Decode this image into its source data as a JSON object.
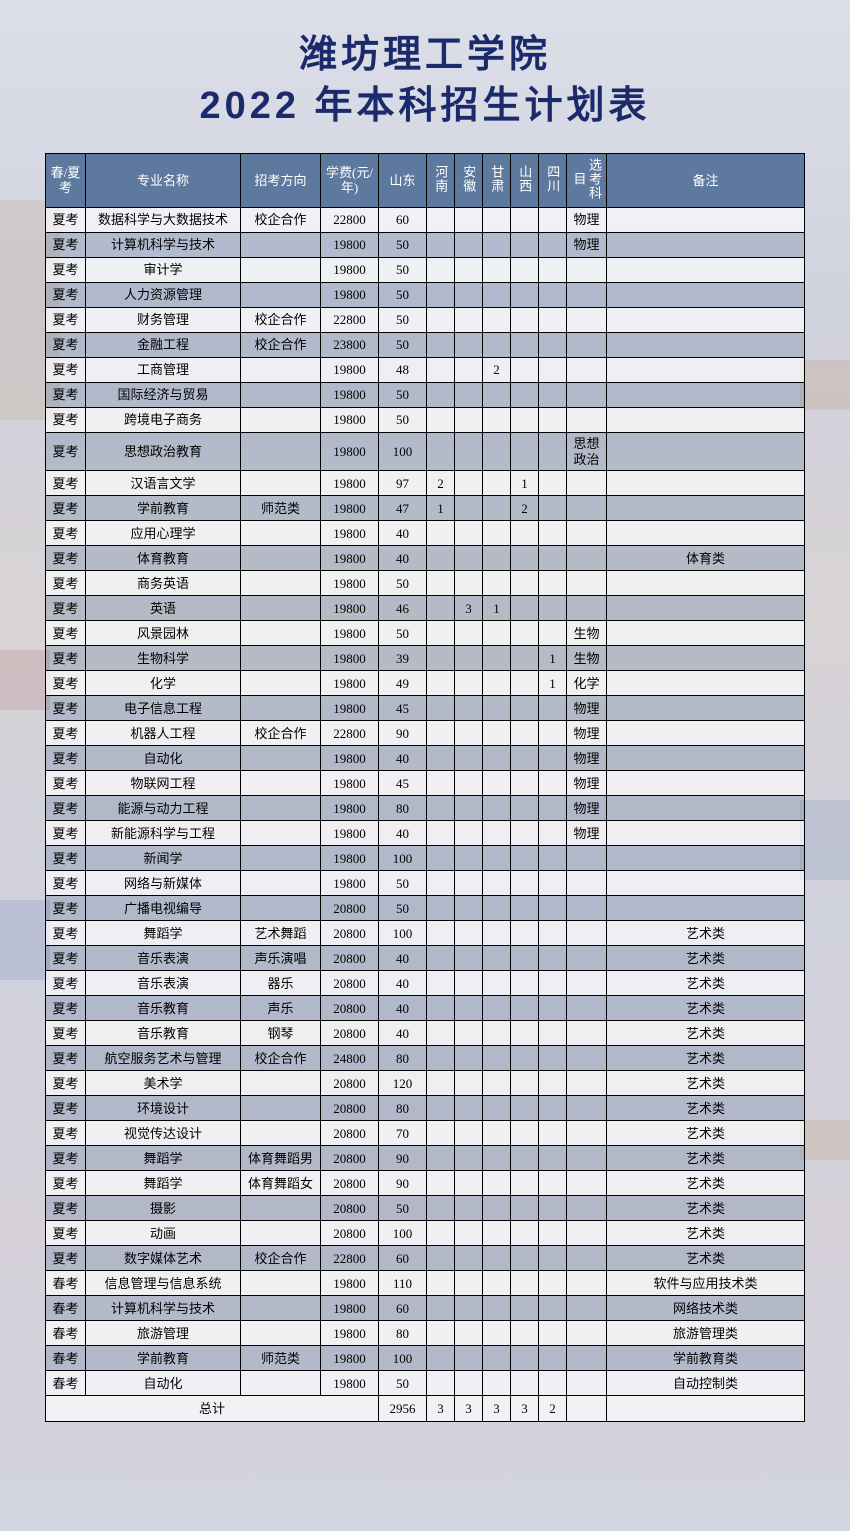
{
  "title_line1": "潍坊理工学院",
  "title_line2": "2022 年本科招生计划表",
  "headers": {
    "exam": "春/夏考",
    "major": "专业名称",
    "direction": "招考方向",
    "fee": "学费(元/年)",
    "shandong": "山东",
    "henan": "河南",
    "anhui": "安徽",
    "gansu": "甘肃",
    "shanxi": "山西",
    "sichuan": "四川",
    "subject": "选考科目",
    "note": "备注"
  },
  "rows": [
    {
      "exam": "夏考",
      "major": "数据科学与大数据技术",
      "direction": "校企合作",
      "fee": "22800",
      "sd": "60",
      "hn": "",
      "ah": "",
      "gs": "",
      "sx": "",
      "sc": "",
      "subj": "物理",
      "note": ""
    },
    {
      "exam": "夏考",
      "major": "计算机科学与技术",
      "direction": "",
      "fee": "19800",
      "sd": "50",
      "hn": "",
      "ah": "",
      "gs": "",
      "sx": "",
      "sc": "",
      "subj": "物理",
      "note": ""
    },
    {
      "exam": "夏考",
      "major": "审计学",
      "direction": "",
      "fee": "19800",
      "sd": "50",
      "hn": "",
      "ah": "",
      "gs": "",
      "sx": "",
      "sc": "",
      "subj": "",
      "note": ""
    },
    {
      "exam": "夏考",
      "major": "人力资源管理",
      "direction": "",
      "fee": "19800",
      "sd": "50",
      "hn": "",
      "ah": "",
      "gs": "",
      "sx": "",
      "sc": "",
      "subj": "",
      "note": ""
    },
    {
      "exam": "夏考",
      "major": "财务管理",
      "direction": "校企合作",
      "fee": "22800",
      "sd": "50",
      "hn": "",
      "ah": "",
      "gs": "",
      "sx": "",
      "sc": "",
      "subj": "",
      "note": ""
    },
    {
      "exam": "夏考",
      "major": "金融工程",
      "direction": "校企合作",
      "fee": "23800",
      "sd": "50",
      "hn": "",
      "ah": "",
      "gs": "",
      "sx": "",
      "sc": "",
      "subj": "",
      "note": ""
    },
    {
      "exam": "夏考",
      "major": "工商管理",
      "direction": "",
      "fee": "19800",
      "sd": "48",
      "hn": "",
      "ah": "",
      "gs": "2",
      "sx": "",
      "sc": "",
      "subj": "",
      "note": ""
    },
    {
      "exam": "夏考",
      "major": "国际经济与贸易",
      "direction": "",
      "fee": "19800",
      "sd": "50",
      "hn": "",
      "ah": "",
      "gs": "",
      "sx": "",
      "sc": "",
      "subj": "",
      "note": ""
    },
    {
      "exam": "夏考",
      "major": "跨境电子商务",
      "direction": "",
      "fee": "19800",
      "sd": "50",
      "hn": "",
      "ah": "",
      "gs": "",
      "sx": "",
      "sc": "",
      "subj": "",
      "note": ""
    },
    {
      "exam": "夏考",
      "major": "思想政治教育",
      "direction": "",
      "fee": "19800",
      "sd": "100",
      "hn": "",
      "ah": "",
      "gs": "",
      "sx": "",
      "sc": "",
      "subj": "思想政治",
      "note": ""
    },
    {
      "exam": "夏考",
      "major": "汉语言文学",
      "direction": "",
      "fee": "19800",
      "sd": "97",
      "hn": "2",
      "ah": "",
      "gs": "",
      "sx": "1",
      "sc": "",
      "subj": "",
      "note": ""
    },
    {
      "exam": "夏考",
      "major": "学前教育",
      "direction": "师范类",
      "fee": "19800",
      "sd": "47",
      "hn": "1",
      "ah": "",
      "gs": "",
      "sx": "2",
      "sc": "",
      "subj": "",
      "note": ""
    },
    {
      "exam": "夏考",
      "major": "应用心理学",
      "direction": "",
      "fee": "19800",
      "sd": "40",
      "hn": "",
      "ah": "",
      "gs": "",
      "sx": "",
      "sc": "",
      "subj": "",
      "note": ""
    },
    {
      "exam": "夏考",
      "major": "体育教育",
      "direction": "",
      "fee": "19800",
      "sd": "40",
      "hn": "",
      "ah": "",
      "gs": "",
      "sx": "",
      "sc": "",
      "subj": "",
      "note": "体育类"
    },
    {
      "exam": "夏考",
      "major": "商务英语",
      "direction": "",
      "fee": "19800",
      "sd": "50",
      "hn": "",
      "ah": "",
      "gs": "",
      "sx": "",
      "sc": "",
      "subj": "",
      "note": ""
    },
    {
      "exam": "夏考",
      "major": "英语",
      "direction": "",
      "fee": "19800",
      "sd": "46",
      "hn": "",
      "ah": "3",
      "gs": "1",
      "sx": "",
      "sc": "",
      "subj": "",
      "note": ""
    },
    {
      "exam": "夏考",
      "major": "风景园林",
      "direction": "",
      "fee": "19800",
      "sd": "50",
      "hn": "",
      "ah": "",
      "gs": "",
      "sx": "",
      "sc": "",
      "subj": "生物",
      "note": ""
    },
    {
      "exam": "夏考",
      "major": "生物科学",
      "direction": "",
      "fee": "19800",
      "sd": "39",
      "hn": "",
      "ah": "",
      "gs": "",
      "sx": "",
      "sc": "1",
      "subj": "生物",
      "note": ""
    },
    {
      "exam": "夏考",
      "major": "化学",
      "direction": "",
      "fee": "19800",
      "sd": "49",
      "hn": "",
      "ah": "",
      "gs": "",
      "sx": "",
      "sc": "1",
      "subj": "化学",
      "note": ""
    },
    {
      "exam": "夏考",
      "major": "电子信息工程",
      "direction": "",
      "fee": "19800",
      "sd": "45",
      "hn": "",
      "ah": "",
      "gs": "",
      "sx": "",
      "sc": "",
      "subj": "物理",
      "note": ""
    },
    {
      "exam": "夏考",
      "major": "机器人工程",
      "direction": "校企合作",
      "fee": "22800",
      "sd": "90",
      "hn": "",
      "ah": "",
      "gs": "",
      "sx": "",
      "sc": "",
      "subj": "物理",
      "note": ""
    },
    {
      "exam": "夏考",
      "major": "自动化",
      "direction": "",
      "fee": "19800",
      "sd": "40",
      "hn": "",
      "ah": "",
      "gs": "",
      "sx": "",
      "sc": "",
      "subj": "物理",
      "note": ""
    },
    {
      "exam": "夏考",
      "major": "物联网工程",
      "direction": "",
      "fee": "19800",
      "sd": "45",
      "hn": "",
      "ah": "",
      "gs": "",
      "sx": "",
      "sc": "",
      "subj": "物理",
      "note": ""
    },
    {
      "exam": "夏考",
      "major": "能源与动力工程",
      "direction": "",
      "fee": "19800",
      "sd": "80",
      "hn": "",
      "ah": "",
      "gs": "",
      "sx": "",
      "sc": "",
      "subj": "物理",
      "note": ""
    },
    {
      "exam": "夏考",
      "major": "新能源科学与工程",
      "direction": "",
      "fee": "19800",
      "sd": "40",
      "hn": "",
      "ah": "",
      "gs": "",
      "sx": "",
      "sc": "",
      "subj": "物理",
      "note": ""
    },
    {
      "exam": "夏考",
      "major": "新闻学",
      "direction": "",
      "fee": "19800",
      "sd": "100",
      "hn": "",
      "ah": "",
      "gs": "",
      "sx": "",
      "sc": "",
      "subj": "",
      "note": ""
    },
    {
      "exam": "夏考",
      "major": "网络与新媒体",
      "direction": "",
      "fee": "19800",
      "sd": "50",
      "hn": "",
      "ah": "",
      "gs": "",
      "sx": "",
      "sc": "",
      "subj": "",
      "note": ""
    },
    {
      "exam": "夏考",
      "major": "广播电视编导",
      "direction": "",
      "fee": "20800",
      "sd": "50",
      "hn": "",
      "ah": "",
      "gs": "",
      "sx": "",
      "sc": "",
      "subj": "",
      "note": ""
    },
    {
      "exam": "夏考",
      "major": "舞蹈学",
      "direction": "艺术舞蹈",
      "fee": "20800",
      "sd": "100",
      "hn": "",
      "ah": "",
      "gs": "",
      "sx": "",
      "sc": "",
      "subj": "",
      "note": "艺术类"
    },
    {
      "exam": "夏考",
      "major": "音乐表演",
      "direction": "声乐演唱",
      "fee": "20800",
      "sd": "40",
      "hn": "",
      "ah": "",
      "gs": "",
      "sx": "",
      "sc": "",
      "subj": "",
      "note": "艺术类"
    },
    {
      "exam": "夏考",
      "major": "音乐表演",
      "direction": "器乐",
      "fee": "20800",
      "sd": "40",
      "hn": "",
      "ah": "",
      "gs": "",
      "sx": "",
      "sc": "",
      "subj": "",
      "note": "艺术类"
    },
    {
      "exam": "夏考",
      "major": "音乐教育",
      "direction": "声乐",
      "fee": "20800",
      "sd": "40",
      "hn": "",
      "ah": "",
      "gs": "",
      "sx": "",
      "sc": "",
      "subj": "",
      "note": "艺术类"
    },
    {
      "exam": "夏考",
      "major": "音乐教育",
      "direction": "钢琴",
      "fee": "20800",
      "sd": "40",
      "hn": "",
      "ah": "",
      "gs": "",
      "sx": "",
      "sc": "",
      "subj": "",
      "note": "艺术类"
    },
    {
      "exam": "夏考",
      "major": "航空服务艺术与管理",
      "direction": "校企合作",
      "fee": "24800",
      "sd": "80",
      "hn": "",
      "ah": "",
      "gs": "",
      "sx": "",
      "sc": "",
      "subj": "",
      "note": "艺术类"
    },
    {
      "exam": "夏考",
      "major": "美术学",
      "direction": "",
      "fee": "20800",
      "sd": "120",
      "hn": "",
      "ah": "",
      "gs": "",
      "sx": "",
      "sc": "",
      "subj": "",
      "note": "艺术类"
    },
    {
      "exam": "夏考",
      "major": "环境设计",
      "direction": "",
      "fee": "20800",
      "sd": "80",
      "hn": "",
      "ah": "",
      "gs": "",
      "sx": "",
      "sc": "",
      "subj": "",
      "note": "艺术类"
    },
    {
      "exam": "夏考",
      "major": "视觉传达设计",
      "direction": "",
      "fee": "20800",
      "sd": "70",
      "hn": "",
      "ah": "",
      "gs": "",
      "sx": "",
      "sc": "",
      "subj": "",
      "note": "艺术类"
    },
    {
      "exam": "夏考",
      "major": "舞蹈学",
      "direction": "体育舞蹈男",
      "fee": "20800",
      "sd": "90",
      "hn": "",
      "ah": "",
      "gs": "",
      "sx": "",
      "sc": "",
      "subj": "",
      "note": "艺术类"
    },
    {
      "exam": "夏考",
      "major": "舞蹈学",
      "direction": "体育舞蹈女",
      "fee": "20800",
      "sd": "90",
      "hn": "",
      "ah": "",
      "gs": "",
      "sx": "",
      "sc": "",
      "subj": "",
      "note": "艺术类"
    },
    {
      "exam": "夏考",
      "major": "摄影",
      "direction": "",
      "fee": "20800",
      "sd": "50",
      "hn": "",
      "ah": "",
      "gs": "",
      "sx": "",
      "sc": "",
      "subj": "",
      "note": "艺术类"
    },
    {
      "exam": "夏考",
      "major": "动画",
      "direction": "",
      "fee": "20800",
      "sd": "100",
      "hn": "",
      "ah": "",
      "gs": "",
      "sx": "",
      "sc": "",
      "subj": "",
      "note": "艺术类"
    },
    {
      "exam": "夏考",
      "major": "数字媒体艺术",
      "direction": "校企合作",
      "fee": "22800",
      "sd": "60",
      "hn": "",
      "ah": "",
      "gs": "",
      "sx": "",
      "sc": "",
      "subj": "",
      "note": "艺术类"
    },
    {
      "exam": "春考",
      "major": "信息管理与信息系统",
      "direction": "",
      "fee": "19800",
      "sd": "110",
      "hn": "",
      "ah": "",
      "gs": "",
      "sx": "",
      "sc": "",
      "subj": "",
      "note": "软件与应用技术类"
    },
    {
      "exam": "春考",
      "major": "计算机科学与技术",
      "direction": "",
      "fee": "19800",
      "sd": "60",
      "hn": "",
      "ah": "",
      "gs": "",
      "sx": "",
      "sc": "",
      "subj": "",
      "note": "网络技术类"
    },
    {
      "exam": "春考",
      "major": "旅游管理",
      "direction": "",
      "fee": "19800",
      "sd": "80",
      "hn": "",
      "ah": "",
      "gs": "",
      "sx": "",
      "sc": "",
      "subj": "",
      "note": "旅游管理类"
    },
    {
      "exam": "春考",
      "major": "学前教育",
      "direction": "师范类",
      "fee": "19800",
      "sd": "100",
      "hn": "",
      "ah": "",
      "gs": "",
      "sx": "",
      "sc": "",
      "subj": "",
      "note": "学前教育类"
    },
    {
      "exam": "春考",
      "major": "自动化",
      "direction": "",
      "fee": "19800",
      "sd": "50",
      "hn": "",
      "ah": "",
      "gs": "",
      "sx": "",
      "sc": "",
      "subj": "",
      "note": "自动控制类"
    }
  ],
  "total": {
    "label": "总计",
    "sd": "2956",
    "hn": "3",
    "ah": "3",
    "gs": "3",
    "sx": "3",
    "sc": "2",
    "subj": "",
    "note": ""
  },
  "colors": {
    "title": "#1a2a6a",
    "header_bg": "#5d7a9e",
    "header_fg": "#ffffff",
    "stripe_even": "rgba(93,122,158,0.28)",
    "stripe_odd": "rgba(255,255,255,0.65)",
    "border": "#000000"
  }
}
